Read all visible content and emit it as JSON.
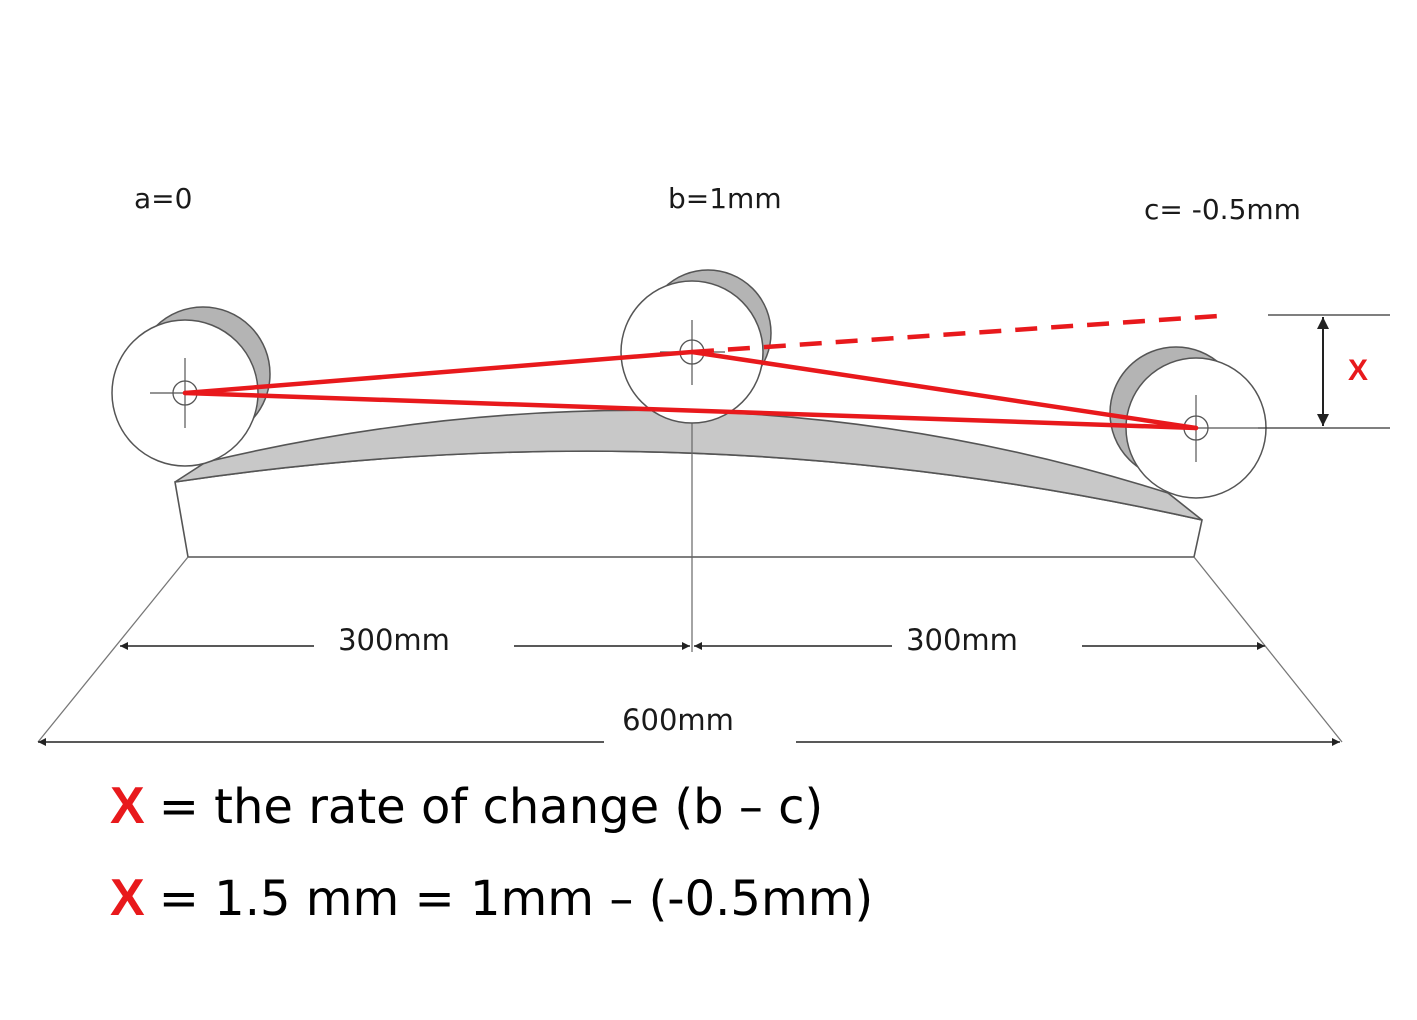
{
  "colors": {
    "accent_red": "#e8191c",
    "base_fill": "#ffffff",
    "base_top_fill": "#c8c8c8",
    "wheel_side": "#b4b4b4",
    "outline": "#555555"
  },
  "labels": {
    "a": "a=0",
    "b": "b=1mm",
    "c": "c= -0.5mm",
    "x_marker": "X"
  },
  "dimensions": {
    "left_span": "300mm",
    "right_span": "300mm",
    "total_span": "600mm"
  },
  "formulas": [
    {
      "var": "X",
      "text": "= the rate of change (b – c)"
    },
    {
      "var": "X",
      "text": "= 1.5 mm = 1mm – (-0.5mm)"
    }
  ]
}
